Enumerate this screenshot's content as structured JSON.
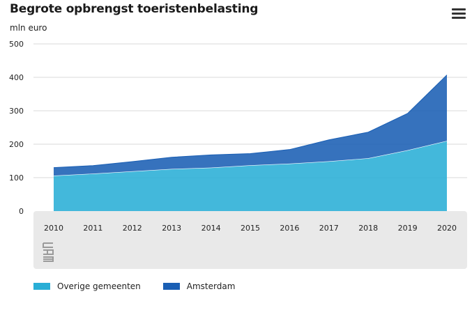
{
  "header": {
    "title": "Begrote opbrengst toeristenbelasting",
    "menu_icon": "hamburger-menu-icon"
  },
  "colors": {
    "overige": "#29aed6",
    "amsterdam": "#1a5fb4",
    "grid": "#d9d9d9",
    "axis_band": "#e9e9e9"
  },
  "logo": "cbs-logo",
  "chart_data": {
    "type": "area",
    "stacked": true,
    "title": "Begrote opbrengst toeristenbelasting",
    "ylabel": "mln euro",
    "xlabel": "",
    "x": [
      "2010",
      "2011",
      "2012",
      "2013",
      "2014",
      "2015",
      "2016",
      "2017",
      "2018",
      "2019",
      "2020"
    ],
    "ylim": [
      0,
      500
    ],
    "yticks": [
      "0",
      "100",
      "200",
      "300",
      "400",
      "500"
    ],
    "grid": true,
    "legend_position": "bottom-left",
    "series": [
      {
        "name": "Overige gemeenten",
        "color": "#29aed6",
        "values": [
          106,
          112,
          119,
          126,
          130,
          137,
          142,
          149,
          158,
          182,
          210
        ]
      },
      {
        "name": "Amsterdam",
        "color": "#1a5fb4",
        "values": [
          24,
          24,
          29,
          35,
          38,
          35,
          42,
          64,
          78,
          110,
          197
        ]
      }
    ]
  }
}
